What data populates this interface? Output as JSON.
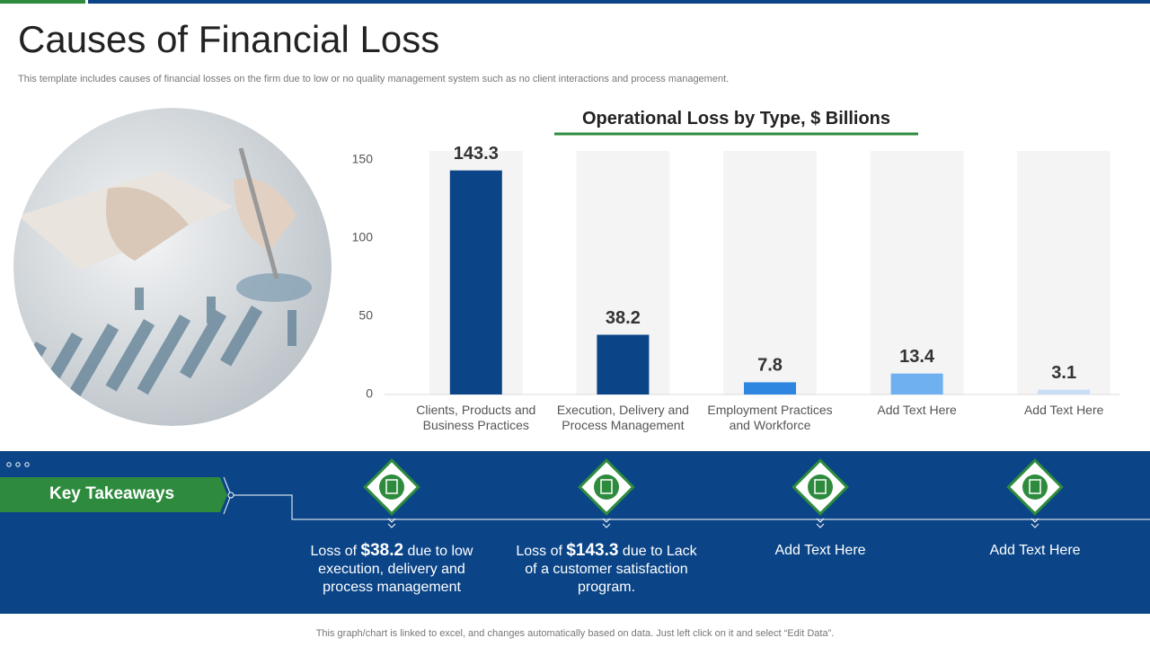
{
  "header": {
    "title": "Causes of Financial Loss",
    "subtitle": "This template includes causes of financial losses on the firm due to  low or no quality management system such as no client interactions and process management."
  },
  "chart_data": {
    "type": "bar",
    "title": "Operational Loss by Type, $ Billions",
    "categories": [
      "Clients, Products and Business Practices",
      "Execution, Delivery and Process Management",
      "Employment Practices and Workforce",
      "Add Text Here",
      "Add Text Here"
    ],
    "values": [
      143.3,
      38.2,
      7.8,
      13.4,
      3.1
    ],
    "colors": [
      "#0b4587",
      "#0b4587",
      "#2f86e0",
      "#6fb0f0",
      "#c9def5"
    ],
    "ylim": [
      0,
      150
    ],
    "yticks": [
      0,
      50,
      100,
      150
    ],
    "grid": false
  },
  "takeaways": {
    "title": "Key Takeaways",
    "items": [
      {
        "before": "Loss of ",
        "highlight": "$38.2",
        "after": " due to low execution, delivery and process management"
      },
      {
        "before": "Loss of ",
        "highlight": "$143.3",
        "after": " due to Lack of a customer satisfaction program."
      },
      {
        "text": "Add Text Here"
      },
      {
        "text": "Add Text Here"
      }
    ]
  },
  "footer": {
    "note": "This graph/chart is linked to excel, and changes automatically based on data. Just left click on it and select “Edit Data”."
  }
}
